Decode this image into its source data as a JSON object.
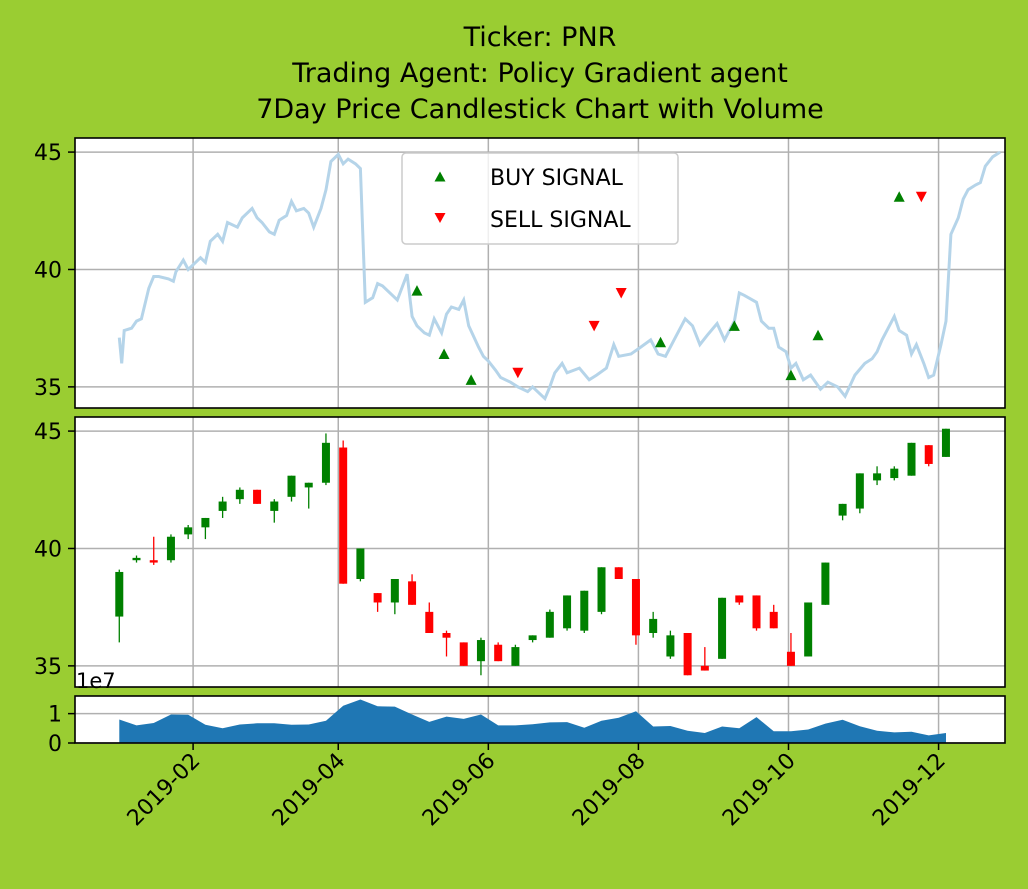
{
  "figure": {
    "background": "#9acd32",
    "title_lines": [
      "Ticker: PNR",
      "Trading Agent: Policy Gradient agent",
      "7Day Price Candlestick Chart with Volume"
    ]
  },
  "colors": {
    "price_line": "#b5d4e9",
    "buy": "#008000",
    "sell": "#ff0000",
    "up_candle": "#008000",
    "down_candle": "#ff0000",
    "volume": "#1f77b4",
    "grid": "#b0b0b0"
  },
  "chart_data": {
    "type": "candlestick",
    "x_axis": {
      "type": "date",
      "range": [
        "2018-12-15",
        "2019-12-28"
      ],
      "ticks": [
        "2019-02",
        "2019-04",
        "2019-06",
        "2019-08",
        "2019-10",
        "2019-12"
      ],
      "tick_dates": [
        "2019-02-01",
        "2019-04-01",
        "2019-06-01",
        "2019-08-01",
        "2019-10-01",
        "2019-12-01"
      ]
    },
    "price_panel": {
      "ylim": [
        34.1,
        45.6
      ],
      "yticks": [
        35,
        40,
        45
      ],
      "grid": true,
      "legend_position": "upper center",
      "series": [
        {
          "name": "BUY SIGNAL",
          "marker": "triangle-up",
          "color": "#008000"
        },
        {
          "name": "SELL SIGNAL",
          "marker": "triangle-down",
          "color": "#ff0000"
        }
      ],
      "close_prices": [
        [
          "2019-01-02",
          37.1
        ],
        [
          "2019-01-03",
          36.0
        ],
        [
          "2019-01-04",
          37.4
        ],
        [
          "2019-01-07",
          37.5
        ],
        [
          "2019-01-09",
          37.8
        ],
        [
          "2019-01-11",
          37.9
        ],
        [
          "2019-01-14",
          39.2
        ],
        [
          "2019-01-16",
          39.7
        ],
        [
          "2019-01-18",
          39.7
        ],
        [
          "2019-01-22",
          39.6
        ],
        [
          "2019-01-24",
          39.5
        ],
        [
          "2019-01-25",
          39.9
        ],
        [
          "2019-01-28",
          40.4
        ],
        [
          "2019-01-30",
          40.0
        ],
        [
          "2019-02-01",
          40.2
        ],
        [
          "2019-02-04",
          40.5
        ],
        [
          "2019-02-06",
          40.3
        ],
        [
          "2019-02-08",
          41.2
        ],
        [
          "2019-02-11",
          41.5
        ],
        [
          "2019-02-13",
          41.2
        ],
        [
          "2019-02-15",
          42.0
        ],
        [
          "2019-02-19",
          41.8
        ],
        [
          "2019-02-21",
          42.2
        ],
        [
          "2019-02-25",
          42.6
        ],
        [
          "2019-02-27",
          42.2
        ],
        [
          "2019-03-01",
          42.0
        ],
        [
          "2019-03-04",
          41.6
        ],
        [
          "2019-03-06",
          41.5
        ],
        [
          "2019-03-08",
          42.1
        ],
        [
          "2019-03-11",
          42.3
        ],
        [
          "2019-03-13",
          42.9
        ],
        [
          "2019-03-15",
          42.5
        ],
        [
          "2019-03-18",
          42.6
        ],
        [
          "2019-03-20",
          42.4
        ],
        [
          "2019-03-22",
          41.8
        ],
        [
          "2019-03-25",
          42.6
        ],
        [
          "2019-03-27",
          43.4
        ],
        [
          "2019-03-29",
          44.6
        ],
        [
          "2019-04-01",
          44.9
        ],
        [
          "2019-04-03",
          44.5
        ],
        [
          "2019-04-05",
          44.7
        ],
        [
          "2019-04-08",
          44.5
        ],
        [
          "2019-04-10",
          44.3
        ],
        [
          "2019-04-12",
          38.6
        ],
        [
          "2019-04-15",
          38.8
        ],
        [
          "2019-04-17",
          39.4
        ],
        [
          "2019-04-19",
          39.3
        ],
        [
          "2019-04-23",
          38.9
        ],
        [
          "2019-04-25",
          38.7
        ],
        [
          "2019-04-29",
          39.8
        ],
        [
          "2019-05-01",
          38.0
        ],
        [
          "2019-05-03",
          37.6
        ],
        [
          "2019-05-06",
          37.3
        ],
        [
          "2019-05-08",
          37.2
        ],
        [
          "2019-05-10",
          37.9
        ],
        [
          "2019-05-13",
          37.3
        ],
        [
          "2019-05-15",
          38.1
        ],
        [
          "2019-05-17",
          38.4
        ],
        [
          "2019-05-20",
          38.3
        ],
        [
          "2019-05-22",
          38.7
        ],
        [
          "2019-05-24",
          37.6
        ],
        [
          "2019-05-28",
          36.7
        ],
        [
          "2019-05-30",
          36.3
        ],
        [
          "2019-06-01",
          36.1
        ],
        [
          "2019-06-04",
          35.7
        ],
        [
          "2019-06-06",
          35.4
        ],
        [
          "2019-06-10",
          35.2
        ],
        [
          "2019-06-13",
          35.0
        ],
        [
          "2019-06-17",
          34.8
        ],
        [
          "2019-06-19",
          35.0
        ],
        [
          "2019-06-24",
          34.5
        ],
        [
          "2019-06-26",
          35.0
        ],
        [
          "2019-06-28",
          35.6
        ],
        [
          "2019-07-01",
          36.0
        ],
        [
          "2019-07-03",
          35.6
        ],
        [
          "2019-07-08",
          35.8
        ],
        [
          "2019-07-12",
          35.3
        ],
        [
          "2019-07-15",
          35.5
        ],
        [
          "2019-07-19",
          35.8
        ],
        [
          "2019-07-22",
          36.8
        ],
        [
          "2019-07-24",
          36.3
        ],
        [
          "2019-07-29",
          36.4
        ],
        [
          "2019-08-02",
          36.7
        ],
        [
          "2019-08-06",
          37.0
        ],
        [
          "2019-08-09",
          36.4
        ],
        [
          "2019-08-12",
          36.3
        ],
        [
          "2019-08-16",
          37.1
        ],
        [
          "2019-08-20",
          37.9
        ],
        [
          "2019-08-23",
          37.6
        ],
        [
          "2019-08-26",
          36.8
        ],
        [
          "2019-08-29",
          37.2
        ],
        [
          "2019-09-02",
          37.7
        ],
        [
          "2019-09-05",
          37.0
        ],
        [
          "2019-09-09",
          37.8
        ],
        [
          "2019-09-11",
          39.0
        ],
        [
          "2019-09-13",
          38.9
        ],
        [
          "2019-09-18",
          38.6
        ],
        [
          "2019-09-20",
          37.8
        ],
        [
          "2019-09-23",
          37.5
        ],
        [
          "2019-09-25",
          37.5
        ],
        [
          "2019-09-27",
          36.7
        ],
        [
          "2019-09-30",
          36.5
        ],
        [
          "2019-10-02",
          35.8
        ],
        [
          "2019-10-04",
          36.0
        ],
        [
          "2019-10-07",
          35.3
        ],
        [
          "2019-10-10",
          35.5
        ],
        [
          "2019-10-14",
          34.9
        ],
        [
          "2019-10-17",
          35.2
        ],
        [
          "2019-10-21",
          35.0
        ],
        [
          "2019-10-24",
          34.6
        ],
        [
          "2019-10-28",
          35.5
        ],
        [
          "2019-11-01",
          36.0
        ],
        [
          "2019-11-04",
          36.2
        ],
        [
          "2019-11-06",
          36.5
        ],
        [
          "2019-11-08",
          37.0
        ],
        [
          "2019-11-11",
          37.6
        ],
        [
          "2019-11-13",
          38.0
        ],
        [
          "2019-11-15",
          37.4
        ],
        [
          "2019-11-18",
          37.2
        ],
        [
          "2019-11-20",
          36.4
        ],
        [
          "2019-11-22",
          36.8
        ],
        [
          "2019-11-25",
          36.0
        ],
        [
          "2019-11-27",
          35.4
        ],
        [
          "2019-11-29",
          35.5
        ],
        [
          "2019-12-02",
          36.8
        ],
        [
          "2019-12-04",
          37.8
        ],
        [
          "2019-12-06",
          41.5
        ],
        [
          "2019-12-09",
          42.2
        ],
        [
          "2019-12-11",
          43.0
        ],
        [
          "2019-12-13",
          43.4
        ],
        [
          "2019-12-16",
          43.6
        ],
        [
          "2019-12-18",
          43.7
        ],
        [
          "2019-12-20",
          44.4
        ],
        [
          "2019-12-23",
          44.8
        ],
        [
          "2019-12-26",
          45.0
        ]
      ],
      "buy_signals": [
        [
          "2019-05-03",
          39.1
        ],
        [
          "2019-05-14",
          36.4
        ],
        [
          "2019-05-25",
          35.3
        ],
        [
          "2019-08-10",
          36.9
        ],
        [
          "2019-09-09",
          37.6
        ],
        [
          "2019-10-02",
          35.5
        ],
        [
          "2019-10-13",
          37.2
        ],
        [
          "2019-11-15",
          43.1
        ]
      ],
      "sell_signals": [
        [
          "2019-06-13",
          35.6
        ],
        [
          "2019-07-14",
          37.6
        ],
        [
          "2019-07-25",
          39.0
        ],
        [
          "2019-11-24",
          43.1
        ]
      ]
    },
    "candle_panel": {
      "ylim": [
        34.1,
        45.6
      ],
      "yticks": [
        35,
        40,
        45
      ],
      "grid": true,
      "candles": [
        [
          "2019-01-02",
          37.1,
          39.1,
          36.0,
          39.0
        ],
        [
          "2019-01-09",
          39.5,
          39.7,
          39.4,
          39.6
        ],
        [
          "2019-01-16",
          39.5,
          40.5,
          39.3,
          39.4
        ],
        [
          "2019-01-23",
          39.5,
          40.6,
          39.4,
          40.5
        ],
        [
          "2019-01-30",
          40.6,
          41.0,
          40.4,
          40.9
        ],
        [
          "2019-02-06",
          40.9,
          41.3,
          40.4,
          41.3
        ],
        [
          "2019-02-13",
          41.6,
          42.2,
          41.3,
          42.0
        ],
        [
          "2019-02-20",
          42.1,
          42.6,
          41.9,
          42.5
        ],
        [
          "2019-02-27",
          42.5,
          42.5,
          41.9,
          41.9
        ],
        [
          "2019-03-06",
          41.6,
          42.1,
          41.1,
          42.0
        ],
        [
          "2019-03-13",
          42.2,
          43.1,
          42.0,
          43.1
        ],
        [
          "2019-03-20",
          42.6,
          42.8,
          41.7,
          42.8
        ],
        [
          "2019-03-27",
          42.8,
          44.9,
          42.7,
          44.5
        ],
        [
          "2019-04-03",
          44.3,
          44.6,
          38.5,
          38.5
        ],
        [
          "2019-04-10",
          38.7,
          40.0,
          38.6,
          40.0
        ],
        [
          "2019-04-17",
          38.1,
          38.1,
          37.3,
          37.7
        ],
        [
          "2019-04-24",
          37.7,
          38.7,
          37.2,
          38.7
        ],
        [
          "2019-05-01",
          38.6,
          38.9,
          37.6,
          37.6
        ],
        [
          "2019-05-08",
          37.3,
          37.7,
          36.4,
          36.4
        ],
        [
          "2019-05-15",
          36.4,
          36.5,
          35.4,
          36.2
        ],
        [
          "2019-05-22",
          36.0,
          36.0,
          35.0,
          35.0
        ],
        [
          "2019-05-29",
          35.2,
          36.2,
          34.6,
          36.1
        ],
        [
          "2019-06-05",
          35.9,
          36.0,
          35.2,
          35.2
        ],
        [
          "2019-06-12",
          35.0,
          35.9,
          35.0,
          35.8
        ],
        [
          "2019-06-19",
          36.1,
          36.3,
          36.0,
          36.3
        ],
        [
          "2019-06-26",
          36.2,
          37.4,
          36.2,
          37.3
        ],
        [
          "2019-07-03",
          36.6,
          38.0,
          36.5,
          38.0
        ],
        [
          "2019-07-10",
          36.5,
          38.2,
          36.4,
          38.2
        ],
        [
          "2019-07-17",
          37.3,
          39.2,
          37.2,
          39.2
        ],
        [
          "2019-07-24",
          39.2,
          39.2,
          38.7,
          38.7
        ],
        [
          "2019-07-31",
          38.7,
          38.7,
          35.9,
          36.3
        ],
        [
          "2019-08-07",
          36.4,
          37.3,
          36.2,
          37.0
        ],
        [
          "2019-08-14",
          35.4,
          36.5,
          35.3,
          36.3
        ],
        [
          "2019-08-21",
          36.4,
          36.4,
          34.6,
          34.6
        ],
        [
          "2019-08-28",
          35.0,
          35.8,
          34.8,
          34.8
        ],
        [
          "2019-09-04",
          35.3,
          37.9,
          35.3,
          37.9
        ],
        [
          "2019-09-11",
          38.0,
          38.0,
          37.6,
          37.7
        ],
        [
          "2019-09-18",
          38.0,
          38.0,
          36.5,
          36.6
        ],
        [
          "2019-09-25",
          37.3,
          37.6,
          36.6,
          36.6
        ],
        [
          "2019-10-02",
          35.6,
          36.4,
          35.0,
          35.0
        ],
        [
          "2019-10-09",
          35.4,
          37.7,
          35.4,
          37.7
        ],
        [
          "2019-10-16",
          37.6,
          39.4,
          37.6,
          39.4
        ],
        [
          "2019-10-23",
          41.4,
          41.9,
          41.2,
          41.9
        ],
        [
          "2019-10-30",
          41.7,
          43.2,
          41.5,
          43.2
        ],
        [
          "2019-11-06",
          42.9,
          43.5,
          42.7,
          43.2
        ],
        [
          "2019-11-13",
          43.0,
          43.5,
          42.9,
          43.4
        ],
        [
          "2019-11-20",
          43.1,
          44.5,
          43.1,
          44.5
        ],
        [
          "2019-11-27",
          44.4,
          44.4,
          43.5,
          43.6
        ],
        [
          "2019-12-04",
          43.9,
          45.1,
          43.9,
          45.1
        ]
      ]
    },
    "volume_panel": {
      "ylim": [
        0,
        1.6
      ],
      "yticks": [
        0,
        1
      ],
      "scale_label": "1e7",
      "grid": true,
      "values": [
        [
          "2019-01-02",
          0.8
        ],
        [
          "2019-01-09",
          0.6
        ],
        [
          "2019-01-16",
          0.68
        ],
        [
          "2019-01-23",
          0.97
        ],
        [
          "2019-01-30",
          0.96
        ],
        [
          "2019-02-06",
          0.62
        ],
        [
          "2019-02-13",
          0.5
        ],
        [
          "2019-02-20",
          0.63
        ],
        [
          "2019-02-27",
          0.67
        ],
        [
          "2019-03-06",
          0.67
        ],
        [
          "2019-03-13",
          0.62
        ],
        [
          "2019-03-20",
          0.63
        ],
        [
          "2019-03-27",
          0.76
        ],
        [
          "2019-04-03",
          1.27
        ],
        [
          "2019-04-10",
          1.48
        ],
        [
          "2019-04-17",
          1.25
        ],
        [
          "2019-04-24",
          1.24
        ],
        [
          "2019-05-01",
          0.97
        ],
        [
          "2019-05-08",
          0.72
        ],
        [
          "2019-05-15",
          0.9
        ],
        [
          "2019-05-22",
          0.82
        ],
        [
          "2019-05-29",
          0.97
        ],
        [
          "2019-06-05",
          0.6
        ],
        [
          "2019-06-12",
          0.6
        ],
        [
          "2019-06-19",
          0.64
        ],
        [
          "2019-06-26",
          0.7
        ],
        [
          "2019-07-03",
          0.71
        ],
        [
          "2019-07-10",
          0.52
        ],
        [
          "2019-07-17",
          0.76
        ],
        [
          "2019-07-24",
          0.86
        ],
        [
          "2019-07-31",
          1.08
        ],
        [
          "2019-08-07",
          0.56
        ],
        [
          "2019-08-14",
          0.58
        ],
        [
          "2019-08-21",
          0.42
        ],
        [
          "2019-08-28",
          0.34
        ],
        [
          "2019-09-04",
          0.56
        ],
        [
          "2019-09-11",
          0.5
        ],
        [
          "2019-09-18",
          0.88
        ],
        [
          "2019-09-25",
          0.4
        ],
        [
          "2019-10-02",
          0.4
        ],
        [
          "2019-10-09",
          0.46
        ],
        [
          "2019-10-16",
          0.66
        ],
        [
          "2019-10-23",
          0.79
        ],
        [
          "2019-10-30",
          0.57
        ],
        [
          "2019-11-06",
          0.42
        ],
        [
          "2019-11-13",
          0.36
        ],
        [
          "2019-11-20",
          0.38
        ],
        [
          "2019-11-27",
          0.26
        ],
        [
          "2019-12-04",
          0.34
        ]
      ]
    }
  }
}
